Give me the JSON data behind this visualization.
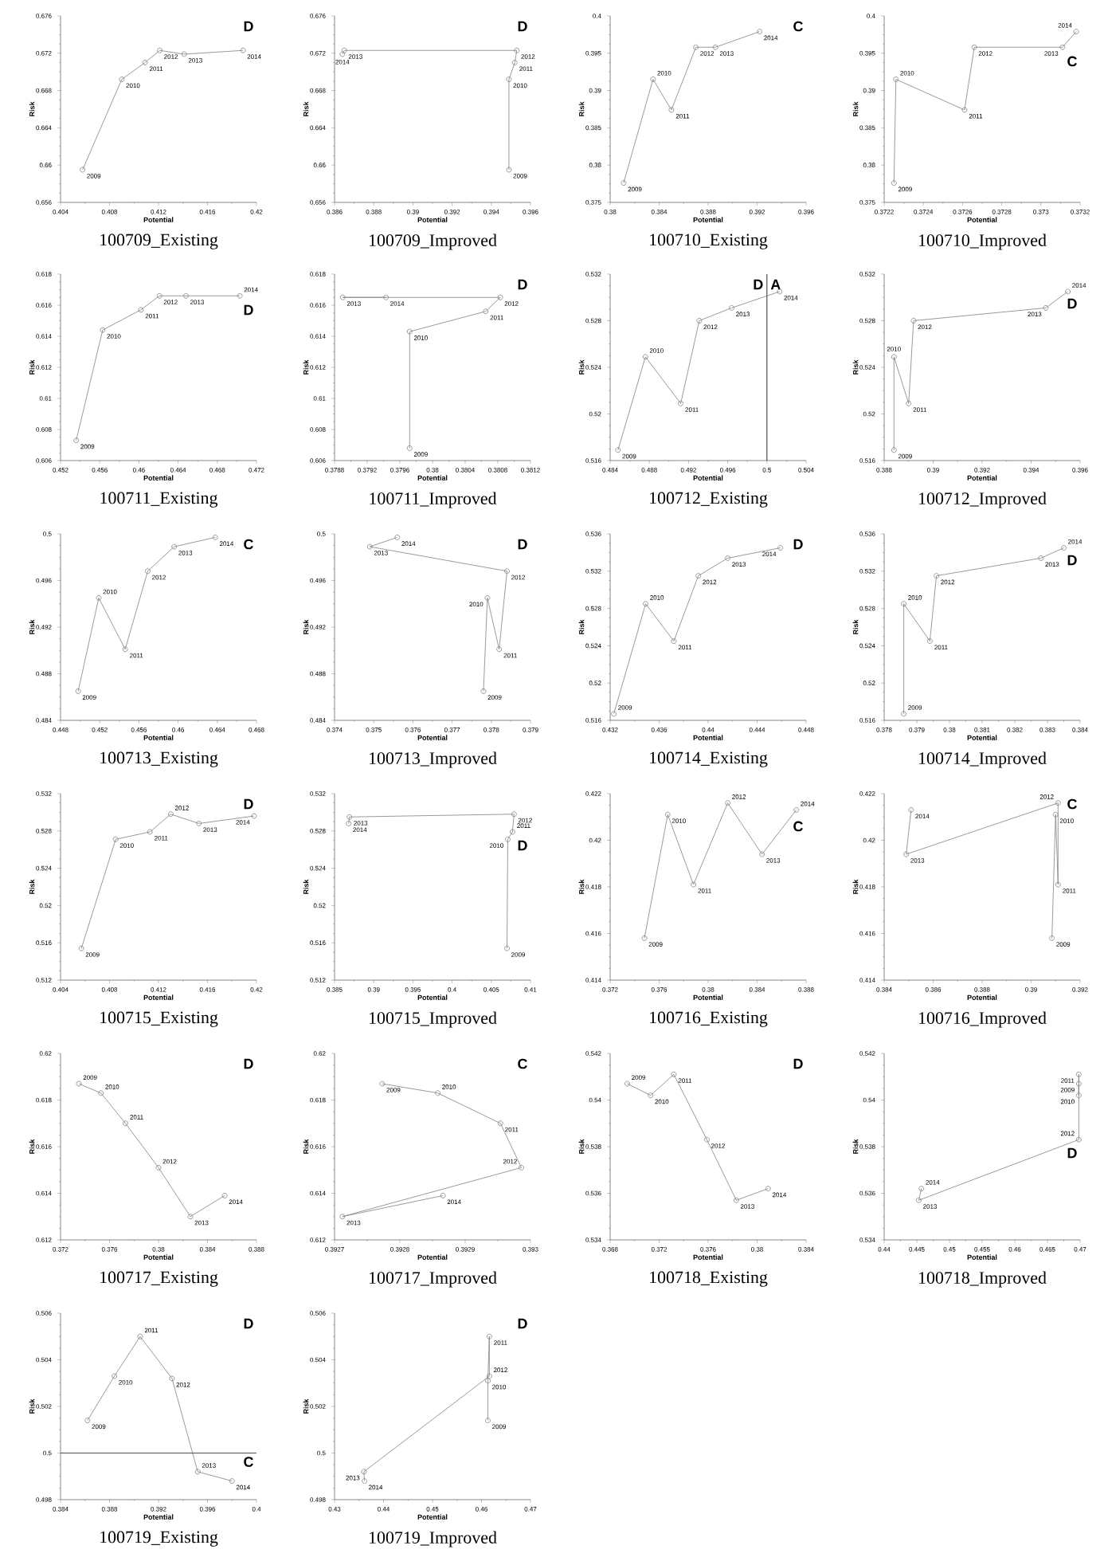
{
  "chart_data": [
    {
      "type": "line",
      "title": "100709_Existing",
      "xlabel": "Potential",
      "ylabel": "Risk",
      "color": "#808080",
      "marker": "circle",
      "xlim": [
        0.404,
        0.42
      ],
      "xticks": [
        0.404,
        0.408,
        0.412,
        0.416,
        0.42
      ],
      "ylim": [
        0.656,
        0.676
      ],
      "yticks": [
        0.656,
        0.66,
        0.664,
        0.668,
        0.672,
        0.676
      ],
      "x": [
        0.4058,
        0.409,
        0.4109,
        0.4121,
        0.4141,
        0.4189
      ],
      "values": [
        0.6595,
        0.6692,
        0.671,
        0.6723,
        0.6719,
        0.6723
      ],
      "annotations": [
        "D",
        {
          "text": "2009",
          "x": 0.4058,
          "y": 0.6595
        },
        {
          "text": "2010",
          "x": 0.409,
          "y": 0.6692
        },
        {
          "text": "2011",
          "x": 0.4109,
          "y": 0.671
        },
        {
          "text": "2012",
          "x": 0.4121,
          "y": 0.6723
        },
        {
          "text": "2013",
          "x": 0.4141,
          "y": 0.6719
        },
        {
          "text": "2014",
          "x": 0.4189,
          "y": 0.6723
        }
      ]
    },
    {
      "type": "line",
      "title": "100709_Improved",
      "xlabel": "Potential",
      "ylabel": "Risk",
      "color": "#808080",
      "marker": "circle",
      "xlim": [
        0.386,
        0.396
      ],
      "xticks": [
        0.386,
        0.388,
        0.39,
        0.392,
        0.394,
        0.396
      ],
      "ylim": [
        0.656,
        0.676
      ],
      "yticks": [
        0.656,
        0.66,
        0.664,
        0.668,
        0.672,
        0.676
      ],
      "x": [
        0.3949,
        0.3949,
        0.3952,
        0.3953,
        0.3865,
        0.3864
      ],
      "values": [
        0.6595,
        0.6692,
        0.671,
        0.6723,
        0.6723,
        0.6719
      ],
      "annotations": [
        "D",
        {
          "text": "2009",
          "x": 0.3949,
          "y": 0.6595
        },
        {
          "text": "2010",
          "x": 0.3949,
          "y": 0.6692
        },
        {
          "text": "2011",
          "x": 0.3952,
          "y": 0.671
        },
        {
          "text": "2012",
          "x": 0.3953,
          "y": 0.6723
        },
        {
          "text": "2013",
          "x": 0.3865,
          "y": 0.6723
        },
        {
          "text": "2014",
          "x": 0.3864,
          "y": 0.6719
        }
      ]
    },
    {
      "type": "line",
      "title": "100710_Existing",
      "xlabel": "Potential",
      "ylabel": "Risk",
      "color": "#808080",
      "marker": "circle",
      "xlim": [
        0.38,
        0.396
      ],
      "xticks": [
        0.38,
        0.384,
        0.388,
        0.392,
        0.396
      ],
      "ylim": [
        0.375,
        0.4
      ],
      "yticks": [
        0.375,
        0.38,
        0.385,
        0.39,
        0.395,
        0.4
      ],
      "x": [
        0.3811,
        0.3835,
        0.385,
        0.387,
        0.3886,
        0.3922
      ],
      "values": [
        0.3776,
        0.3915,
        0.3874,
        0.3958,
        0.3958,
        0.3979
      ],
      "annotations": [
        "C",
        {
          "text": "2009",
          "x": 0.3811,
          "y": 0.3776
        },
        {
          "text": "2010",
          "x": 0.3835,
          "y": 0.3915
        },
        {
          "text": "2011",
          "x": 0.385,
          "y": 0.3874
        },
        {
          "text": "2012",
          "x": 0.387,
          "y": 0.3958
        },
        {
          "text": "2013",
          "x": 0.3886,
          "y": 0.3958
        },
        {
          "text": "2014",
          "x": 0.3922,
          "y": 0.3979
        }
      ]
    },
    {
      "type": "line",
      "title": "100710_Improved",
      "xlabel": "Potential",
      "ylabel": "Risk",
      "color": "#808080",
      "marker": "circle",
      "xlim": [
        0.3722,
        0.3732
      ],
      "xticks": [
        0.3722,
        0.3724,
        0.3726,
        0.3728,
        0.373,
        0.3732
      ],
      "ylim": [
        0.375,
        0.4
      ],
      "yticks": [
        0.375,
        0.38,
        0.385,
        0.39,
        0.395,
        0.4
      ],
      "x": [
        0.37225,
        0.37226,
        0.37261,
        0.37266,
        0.37311,
        0.37318
      ],
      "values": [
        0.3776,
        0.3915,
        0.3874,
        0.3958,
        0.3958,
        0.3979
      ],
      "annotations": [
        "C",
        {
          "text": "2009",
          "x": 0.37225,
          "y": 0.3776
        },
        {
          "text": "2010",
          "x": 0.37226,
          "y": 0.3915
        },
        {
          "text": "2011",
          "x": 0.37261,
          "y": 0.3874
        },
        {
          "text": "2012",
          "x": 0.37266,
          "y": 0.3958
        },
        {
          "text": "2013",
          "x": 0.37311,
          "y": 0.3958
        },
        {
          "text": "2014",
          "x": 0.37318,
          "y": 0.3979
        }
      ]
    },
    {
      "type": "line",
      "title": "100711_Existing",
      "xlabel": "Potential",
      "ylabel": "Risk",
      "color": "#808080",
      "marker": "circle",
      "xlim": [
        0.452,
        0.472
      ],
      "xticks": [
        0.452,
        0.456,
        0.46,
        0.464,
        0.468,
        0.472
      ],
      "ylim": [
        0.606,
        0.618
      ],
      "yticks": [
        0.606,
        0.608,
        0.61,
        0.612,
        0.614,
        0.616,
        0.618
      ],
      "x": [
        0.4536,
        0.4563,
        0.4602,
        0.4621,
        0.4648,
        0.4703
      ],
      "values": [
        0.6073,
        0.6144,
        0.6157,
        0.6166,
        0.6166,
        0.6166
      ],
      "annotations": [
        "D",
        {
          "text": "2009",
          "x": 0.4536,
          "y": 0.6073
        },
        {
          "text": "2010",
          "x": 0.4563,
          "y": 0.6144
        },
        {
          "text": "2011",
          "x": 0.4602,
          "y": 0.6157
        },
        {
          "text": "2012",
          "x": 0.4621,
          "y": 0.6166
        },
        {
          "text": "2013",
          "x": 0.4648,
          "y": 0.6166
        },
        {
          "text": "2014",
          "x": 0.4703,
          "y": 0.6166
        }
      ]
    },
    {
      "type": "line",
      "title": "100711_Improved",
      "xlabel": "Potential",
      "ylabel": "Risk",
      "color": "#808080",
      "marker": "circle",
      "xlim": [
        0.3788,
        0.3812
      ],
      "xticks": [
        0.3788,
        0.3792,
        0.3796,
        0.38,
        0.3804,
        0.3808,
        0.3812
      ],
      "ylim": [
        0.606,
        0.618
      ],
      "yticks": [
        0.606,
        0.608,
        0.61,
        0.612,
        0.614,
        0.616,
        0.618
      ],
      "x": [
        0.37972,
        0.37972,
        0.38065,
        0.38083,
        0.3789,
        0.37943
      ],
      "values": [
        0.6068,
        0.6143,
        0.6156,
        0.6165,
        0.6165,
        0.6165
      ],
      "annotations": [
        "D",
        {
          "text": "2009",
          "x": 0.37972,
          "y": 0.6068
        },
        {
          "text": "2010",
          "x": 0.37972,
          "y": 0.6143
        },
        {
          "text": "2011",
          "x": 0.38065,
          "y": 0.6156
        },
        {
          "text": "2012",
          "x": 0.38083,
          "y": 0.6165
        },
        {
          "text": "2013",
          "x": 0.3789,
          "y": 0.6165
        },
        {
          "text": "2014",
          "x": 0.37943,
          "y": 0.6165
        }
      ]
    },
    {
      "type": "line",
      "title": "100712_Existing",
      "xlabel": "Potential",
      "ylabel": "Risk",
      "color": "#808080",
      "marker": "circle",
      "xlim": [
        0.484,
        0.504
      ],
      "xticks": [
        0.484,
        0.488,
        0.492,
        0.496,
        0.5,
        0.504
      ],
      "ylim": [
        0.516,
        0.532
      ],
      "yticks": [
        0.516,
        0.52,
        0.524,
        0.528,
        0.532
      ],
      "x": [
        0.4848,
        0.4876,
        0.4912,
        0.4931,
        0.4964,
        0.5013
      ],
      "values": [
        0.5169,
        0.5249,
        0.5209,
        0.528,
        0.5291,
        0.5305
      ],
      "ref_lines": [
        {
          "axis": "x",
          "value": 0.5,
          "color": "#505050"
        }
      ],
      "annotations": [
        "D",
        "A",
        {
          "text": "2009",
          "x": 0.4848,
          "y": 0.5169
        },
        {
          "text": "2010",
          "x": 0.4876,
          "y": 0.5249
        },
        {
          "text": "2011",
          "x": 0.4912,
          "y": 0.5209
        },
        {
          "text": "2012",
          "x": 0.4931,
          "y": 0.528
        },
        {
          "text": "2013",
          "x": 0.4964,
          "y": 0.5291
        },
        {
          "text": "2014",
          "x": 0.5013,
          "y": 0.5305
        }
      ]
    },
    {
      "type": "line",
      "title": "100712_Improved",
      "xlabel": "Potential",
      "ylabel": "Risk",
      "color": "#808080",
      "marker": "circle",
      "xlim": [
        0.388,
        0.396
      ],
      "xticks": [
        0.388,
        0.39,
        0.392,
        0.394,
        0.396
      ],
      "ylim": [
        0.516,
        0.532
      ],
      "yticks": [
        0.516,
        0.52,
        0.524,
        0.528,
        0.532
      ],
      "x": [
        0.3884,
        0.3884,
        0.389,
        0.3892,
        0.3946,
        0.3955
      ],
      "values": [
        0.5169,
        0.5249,
        0.5209,
        0.528,
        0.5291,
        0.5305
      ],
      "annotations": [
        "D",
        {
          "text": "2009",
          "x": 0.3884,
          "y": 0.5169
        },
        {
          "text": "2010",
          "x": 0.3884,
          "y": 0.5249
        },
        {
          "text": "2011",
          "x": 0.389,
          "y": 0.5209
        },
        {
          "text": "2012",
          "x": 0.3892,
          "y": 0.528
        },
        {
          "text": "2013",
          "x": 0.3946,
          "y": 0.5291
        },
        {
          "text": "2014",
          "x": 0.3955,
          "y": 0.5305
        }
      ]
    },
    {
      "type": "line",
      "title": "100713_Existing",
      "xlabel": "Potential",
      "ylabel": "Risk",
      "color": "#808080",
      "marker": "circle",
      "xlim": [
        0.448,
        0.468
      ],
      "xticks": [
        0.448,
        0.452,
        0.456,
        0.46,
        0.464,
        0.468
      ],
      "ylim": [
        0.484,
        0.5
      ],
      "yticks": [
        0.484,
        0.488,
        0.492,
        0.496,
        0.5
      ],
      "x": [
        0.4498,
        0.4519,
        0.4546,
        0.4569,
        0.4596,
        0.4638
      ],
      "values": [
        0.4865,
        0.4945,
        0.4901,
        0.4968,
        0.4989,
        0.4997
      ],
      "annotations": [
        "C",
        {
          "text": "2009",
          "x": 0.4498,
          "y": 0.4865
        },
        {
          "text": "2010",
          "x": 0.4519,
          "y": 0.4945
        },
        {
          "text": "2011",
          "x": 0.4546,
          "y": 0.4901
        },
        {
          "text": "2012",
          "x": 0.4569,
          "y": 0.4968
        },
        {
          "text": "2013",
          "x": 0.4596,
          "y": 0.4989
        },
        {
          "text": "2014",
          "x": 0.4638,
          "y": 0.4997
        }
      ]
    },
    {
      "type": "line",
      "title": "100713_Improved",
      "xlabel": "Potential",
      "ylabel": "Risk",
      "color": "#808080",
      "marker": "circle",
      "xlim": [
        0.374,
        0.379
      ],
      "xticks": [
        0.374,
        0.375,
        0.376,
        0.377,
        0.378,
        0.379
      ],
      "ylim": [
        0.484,
        0.5
      ],
      "yticks": [
        0.484,
        0.488,
        0.492,
        0.496,
        0.5
      ],
      "x": [
        0.3778,
        0.3779,
        0.3782,
        0.3784,
        0.3749,
        0.3756
      ],
      "values": [
        0.4865,
        0.4945,
        0.4901,
        0.4968,
        0.4989,
        0.4997
      ],
      "annotations": [
        "D",
        {
          "text": "2009",
          "x": 0.3778,
          "y": 0.4865
        },
        {
          "text": "2010",
          "x": 0.3779,
          "y": 0.4945
        },
        {
          "text": "2011",
          "x": 0.3782,
          "y": 0.4901
        },
        {
          "text": "2012",
          "x": 0.3784,
          "y": 0.4968
        },
        {
          "text": "2013",
          "x": 0.3749,
          "y": 0.4989
        },
        {
          "text": "2014",
          "x": 0.3756,
          "y": 0.4997
        }
      ]
    },
    {
      "type": "line",
      "title": "100714_Existing",
      "xlabel": "Potential",
      "ylabel": "Risk",
      "color": "#808080",
      "marker": "circle",
      "xlim": [
        0.432,
        0.448
      ],
      "xticks": [
        0.432,
        0.436,
        0.44,
        0.444,
        0.448
      ],
      "ylim": [
        0.516,
        0.536
      ],
      "yticks": [
        0.516,
        0.52,
        0.524,
        0.528,
        0.532,
        0.536
      ],
      "x": [
        0.4323,
        0.4349,
        0.4372,
        0.4392,
        0.4416,
        0.4459
      ],
      "values": [
        0.5167,
        0.5285,
        0.5245,
        0.5315,
        0.5334,
        0.5345
      ],
      "annotations": [
        "D",
        {
          "text": "2009",
          "x": 0.4323,
          "y": 0.5167
        },
        {
          "text": "2010",
          "x": 0.4349,
          "y": 0.5285
        },
        {
          "text": "2011",
          "x": 0.4372,
          "y": 0.5245
        },
        {
          "text": "2012",
          "x": 0.4392,
          "y": 0.5315
        },
        {
          "text": "2013",
          "x": 0.4416,
          "y": 0.5334
        },
        {
          "text": "2014",
          "x": 0.4459,
          "y": 0.5345
        }
      ]
    },
    {
      "type": "line",
      "title": "100714_Improved",
      "xlabel": "Potential",
      "ylabel": "Risk",
      "color": "#808080",
      "marker": "circle",
      "xlim": [
        0.378,
        0.384
      ],
      "xticks": [
        0.378,
        0.379,
        0.38,
        0.381,
        0.382,
        0.383,
        0.384
      ],
      "ylim": [
        0.516,
        0.536
      ],
      "yticks": [
        0.516,
        0.52,
        0.524,
        0.528,
        0.532,
        0.536
      ],
      "x": [
        0.3786,
        0.3786,
        0.3794,
        0.3796,
        0.3828,
        0.3835
      ],
      "values": [
        0.5167,
        0.5285,
        0.5245,
        0.5315,
        0.5334,
        0.5345
      ],
      "annotations": [
        "D",
        {
          "text": "2009",
          "x": 0.3786,
          "y": 0.5167
        },
        {
          "text": "2010",
          "x": 0.3786,
          "y": 0.5285
        },
        {
          "text": "2011",
          "x": 0.3794,
          "y": 0.5245
        },
        {
          "text": "2012",
          "x": 0.3796,
          "y": 0.5315
        },
        {
          "text": "2013",
          "x": 0.3828,
          "y": 0.5334
        },
        {
          "text": "2014",
          "x": 0.3835,
          "y": 0.5345
        }
      ]
    },
    {
      "type": "line",
      "title": "100715_Existing",
      "xlabel": "Potential",
      "ylabel": "Risk",
      "color": "#808080",
      "marker": "circle",
      "xlim": [
        0.404,
        0.42
      ],
      "xticks": [
        0.404,
        0.408,
        0.412,
        0.416,
        0.42
      ],
      "ylim": [
        0.512,
        0.532
      ],
      "yticks": [
        0.512,
        0.516,
        0.52,
        0.524,
        0.528,
        0.532
      ],
      "x": [
        0.4057,
        0.4085,
        0.4113,
        0.413,
        0.4153,
        0.4198
      ],
      "values": [
        0.5154,
        0.5271,
        0.5279,
        0.5298,
        0.5288,
        0.5296
      ],
      "annotations": [
        "D",
        {
          "text": "2009",
          "x": 0.4057,
          "y": 0.5154
        },
        {
          "text": "2010",
          "x": 0.4085,
          "y": 0.5271
        },
        {
          "text": "2011",
          "x": 0.4113,
          "y": 0.5279
        },
        {
          "text": "2012",
          "x": 0.413,
          "y": 0.5298
        },
        {
          "text": "2013",
          "x": 0.4153,
          "y": 0.5288
        },
        {
          "text": "2014",
          "x": 0.4198,
          "y": 0.5296
        }
      ]
    },
    {
      "type": "line",
      "title": "100715_Improved",
      "xlabel": "Potential",
      "ylabel": "Risk",
      "color": "#808080",
      "marker": "circle",
      "xlim": [
        0.385,
        0.41
      ],
      "xticks": [
        0.385,
        0.39,
        0.395,
        0.4,
        0.405,
        0.41
      ],
      "ylim": [
        0.512,
        0.532
      ],
      "yticks": [
        0.512,
        0.516,
        0.52,
        0.524,
        0.528,
        0.532
      ],
      "x": [
        0.407,
        0.4071,
        0.4077,
        0.4079,
        0.3869,
        0.3868
      ],
      "values": [
        0.5154,
        0.5271,
        0.5279,
        0.5298,
        0.5295,
        0.5288
      ],
      "annotations": [
        "D",
        {
          "text": "2009",
          "x": 0.407,
          "y": 0.5154
        },
        {
          "text": "2010",
          "x": 0.4071,
          "y": 0.5271
        },
        {
          "text": "2011",
          "x": 0.4077,
          "y": 0.5279
        },
        {
          "text": "2012",
          "x": 0.4079,
          "y": 0.5298
        },
        {
          "text": "2013",
          "x": 0.3869,
          "y": 0.5295
        },
        {
          "text": "2014",
          "x": 0.3868,
          "y": 0.5288
        }
      ]
    },
    {
      "type": "line",
      "title": "100716_Existing",
      "xlabel": "Potential",
      "ylabel": "Risk",
      "color": "#808080",
      "marker": "circle",
      "xlim": [
        0.372,
        0.388
      ],
      "xticks": [
        0.372,
        0.376,
        0.38,
        0.384,
        0.388
      ],
      "ylim": [
        0.414,
        0.422
      ],
      "yticks": [
        0.414,
        0.416,
        0.418,
        0.42,
        0.422
      ],
      "x": [
        0.3748,
        0.3767,
        0.3788,
        0.3816,
        0.3844,
        0.3872
      ],
      "values": [
        0.4158,
        0.4211,
        0.4181,
        0.4216,
        0.4194,
        0.4213
      ],
      "annotations": [
        "C",
        {
          "text": "2009",
          "x": 0.3748,
          "y": 0.4158
        },
        {
          "text": "2010",
          "x": 0.3767,
          "y": 0.4211
        },
        {
          "text": "2011",
          "x": 0.3788,
          "y": 0.4181
        },
        {
          "text": "2012",
          "x": 0.3816,
          "y": 0.4216
        },
        {
          "text": "2013",
          "x": 0.3844,
          "y": 0.4194
        },
        {
          "text": "2014",
          "x": 0.3872,
          "y": 0.4213
        }
      ]
    },
    {
      "type": "line",
      "title": "100716_Improved",
      "xlabel": "Potential",
      "ylabel": "Risk",
      "color": "#808080",
      "marker": "circle",
      "xlim": [
        0.384,
        0.392
      ],
      "xticks": [
        0.384,
        0.386,
        0.388,
        0.39,
        0.392
      ],
      "ylim": [
        0.414,
        0.422
      ],
      "yticks": [
        0.414,
        0.416,
        0.418,
        0.42,
        0.422
      ],
      "x": [
        0.39085,
        0.391,
        0.3911,
        0.3911,
        0.3849,
        0.3851
      ],
      "values": [
        0.4158,
        0.4211,
        0.4181,
        0.4216,
        0.4194,
        0.4213
      ],
      "annotations": [
        "C",
        {
          "text": "2009",
          "x": 0.39085,
          "y": 0.4158
        },
        {
          "text": "2010",
          "x": 0.391,
          "y": 0.4211
        },
        {
          "text": "2011",
          "x": 0.3911,
          "y": 0.4181
        },
        {
          "text": "2012",
          "x": 0.3911,
          "y": 0.4216
        },
        {
          "text": "2013",
          "x": 0.3849,
          "y": 0.4194
        },
        {
          "text": "2014",
          "x": 0.3851,
          "y": 0.4213
        }
      ]
    },
    {
      "type": "line",
      "title": "100717_Existing",
      "xlabel": "Potential",
      "ylabel": "Risk",
      "color": "#808080",
      "marker": "circle",
      "xlim": [
        0.372,
        0.388
      ],
      "xticks": [
        0.372,
        0.376,
        0.38,
        0.384,
        0.388
      ],
      "ylim": [
        0.612,
        0.62
      ],
      "yticks": [
        0.612,
        0.614,
        0.616,
        0.618,
        0.62
      ],
      "x": [
        0.3735,
        0.3753,
        0.3773,
        0.38,
        0.3826,
        0.3854
      ],
      "values": [
        0.6187,
        0.6183,
        0.617,
        0.6151,
        0.613,
        0.6139
      ],
      "annotations": [
        "D",
        {
          "text": "2009",
          "x": 0.3735,
          "y": 0.6187
        },
        {
          "text": "2010",
          "x": 0.3753,
          "y": 0.6183
        },
        {
          "text": "2011",
          "x": 0.3773,
          "y": 0.617
        },
        {
          "text": "2012",
          "x": 0.38,
          "y": 0.6151
        },
        {
          "text": "2013",
          "x": 0.3826,
          "y": 0.613
        },
        {
          "text": "2014",
          "x": 0.3854,
          "y": 0.6139
        }
      ]
    },
    {
      "type": "line",
      "title": "100717_Improved",
      "xlabel": "Potential",
      "ylabel": "Risk",
      "color": "#808080",
      "marker": "circle",
      "xlim": [
        0.3927,
        0.393
      ],
      "xticks": [
        0.3927,
        0.3928,
        0.3929,
        0.393
      ],
      "ylim": [
        0.612,
        0.62
      ],
      "yticks": [
        0.612,
        0.614,
        0.616,
        0.618,
        0.62
      ],
      "x": [
        0.392773,
        0.392858,
        0.392954,
        0.392986,
        0.392712,
        0.392866
      ],
      "values": [
        0.6187,
        0.6183,
        0.617,
        0.6151,
        0.613,
        0.6139
      ],
      "annotations": [
        "C",
        {
          "text": "2009",
          "x": 0.392773,
          "y": 0.6187
        },
        {
          "text": "2010",
          "x": 0.392858,
          "y": 0.6183
        },
        {
          "text": "2011",
          "x": 0.392954,
          "y": 0.617
        },
        {
          "text": "2012",
          "x": 0.392986,
          "y": 0.6151
        },
        {
          "text": "2013",
          "x": 0.392712,
          "y": 0.613
        },
        {
          "text": "2014",
          "x": 0.392866,
          "y": 0.6139
        }
      ]
    },
    {
      "type": "line",
      "title": "100718_Existing",
      "xlabel": "Potential",
      "ylabel": "Risk",
      "color": "#808080",
      "marker": "circle",
      "xlim": [
        0.368,
        0.384
      ],
      "xticks": [
        0.368,
        0.372,
        0.376,
        0.38,
        0.384
      ],
      "ylim": [
        0.534,
        0.542
      ],
      "yticks": [
        0.534,
        0.536,
        0.538,
        0.54,
        0.542
      ],
      "x": [
        0.3694,
        0.3713,
        0.3732,
        0.3759,
        0.3783,
        0.3809
      ],
      "values": [
        0.5407,
        0.5402,
        0.5411,
        0.5383,
        0.5357,
        0.5362
      ],
      "annotations": [
        "D",
        {
          "text": "2009",
          "x": 0.3694,
          "y": 0.5407
        },
        {
          "text": "2010",
          "x": 0.3713,
          "y": 0.5402
        },
        {
          "text": "2011",
          "x": 0.3732,
          "y": 0.5411
        },
        {
          "text": "2012",
          "x": 0.3759,
          "y": 0.5383
        },
        {
          "text": "2013",
          "x": 0.3783,
          "y": 0.5357
        },
        {
          "text": "2014",
          "x": 0.3809,
          "y": 0.5362
        }
      ]
    },
    {
      "type": "line",
      "title": "100718_Improved",
      "xlabel": "Potential",
      "ylabel": "Risk",
      "color": "#808080",
      "marker": "circle",
      "xlim": [
        0.44,
        0.47
      ],
      "xticks": [
        0.44,
        0.445,
        0.45,
        0.455,
        0.46,
        0.465,
        0.47
      ],
      "ylim": [
        0.534,
        0.542
      ],
      "yticks": [
        0.534,
        0.536,
        0.538,
        0.54,
        0.542
      ],
      "x": [
        0.4698,
        0.4698,
        0.4698,
        0.4698,
        0.4453,
        0.4457
      ],
      "values": [
        0.5407,
        0.5402,
        0.5411,
        0.5383,
        0.5357,
        0.5362
      ],
      "annotations": [
        "D",
        {
          "text": "2009",
          "x": 0.4698,
          "y": 0.5407
        },
        {
          "text": "2010",
          "x": 0.4698,
          "y": 0.5402
        },
        {
          "text": "2011",
          "x": 0.4698,
          "y": 0.5411
        },
        {
          "text": "2012",
          "x": 0.4698,
          "y": 0.5383
        },
        {
          "text": "2013",
          "x": 0.4453,
          "y": 0.5357
        },
        {
          "text": "2014",
          "x": 0.4457,
          "y": 0.5362
        }
      ]
    },
    {
      "type": "line",
      "title": "100719_Existing",
      "xlabel": "Potential",
      "ylabel": "Risk",
      "color": "#808080",
      "marker": "circle",
      "xlim": [
        0.384,
        0.4
      ],
      "xticks": [
        0.384,
        0.388,
        0.392,
        0.396,
        0.4
      ],
      "ylim": [
        0.498,
        0.506
      ],
      "yticks": [
        0.498,
        0.5,
        0.502,
        0.504,
        0.506
      ],
      "x": [
        0.3862,
        0.3884,
        0.3905,
        0.3931,
        0.3952,
        0.398
      ],
      "values": [
        0.5014,
        0.5033,
        0.505,
        0.5032,
        0.4992,
        0.4988
      ],
      "ref_lines": [
        {
          "axis": "y",
          "value": 0.5,
          "color": "#505050"
        }
      ],
      "annotations": [
        "D",
        "C",
        {
          "text": "2009",
          "x": 0.3862,
          "y": 0.5014
        },
        {
          "text": "2010",
          "x": 0.3884,
          "y": 0.5033
        },
        {
          "text": "2011",
          "x": 0.3905,
          "y": 0.505
        },
        {
          "text": "2012",
          "x": 0.3931,
          "y": 0.5032
        },
        {
          "text": "2013",
          "x": 0.3952,
          "y": 0.4992
        },
        {
          "text": "2014",
          "x": 0.398,
          "y": 0.4988
        }
      ]
    },
    {
      "type": "line",
      "title": "100719_Improved",
      "xlabel": "Potential",
      "ylabel": "Risk",
      "color": "#808080",
      "marker": "circle",
      "xlim": [
        0.43,
        0.47
      ],
      "xticks": [
        0.43,
        0.44,
        0.45,
        0.46,
        0.47
      ],
      "ylim": [
        0.498,
        0.506
      ],
      "yticks": [
        0.498,
        0.5,
        0.502,
        0.504,
        0.506
      ],
      "x": [
        0.4613,
        0.4613,
        0.4616,
        0.4616,
        0.436,
        0.4361
      ],
      "values": [
        0.5014,
        0.5031,
        0.505,
        0.5033,
        0.4992,
        0.4988
      ],
      "annotations": [
        "D",
        {
          "text": "2009",
          "x": 0.4613,
          "y": 0.5014
        },
        {
          "text": "2010",
          "x": 0.4613,
          "y": 0.5031
        },
        {
          "text": "2011",
          "x": 0.4616,
          "y": 0.505
        },
        {
          "text": "2012",
          "x": 0.4616,
          "y": 0.5033
        },
        {
          "text": "2013",
          "x": 0.436,
          "y": 0.4992
        },
        {
          "text": "2014",
          "x": 0.4361,
          "y": 0.4988
        }
      ]
    }
  ]
}
